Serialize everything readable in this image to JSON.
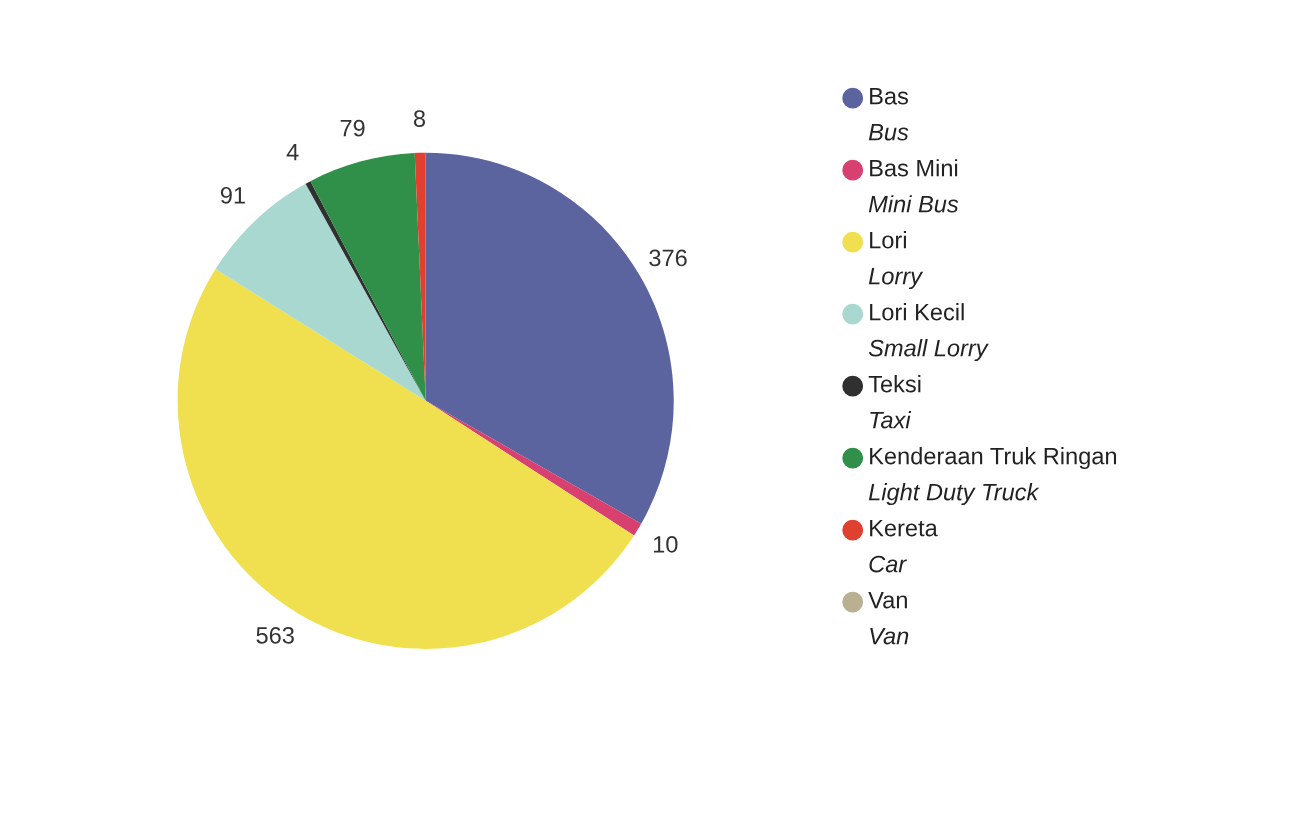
{
  "chart_data": {
    "type": "pie",
    "categories": [
      "Bas\nBus",
      "Bas Mini\nMini Bus",
      "Lori\nLorry",
      "Lori Kecil\nSmall Lorry",
      "Teksi\nTaxi",
      "Kenderaan Truk Ringan\nLight Duty Truck",
      "Kereta\nCar",
      "Van\nVan"
    ],
    "values": [
      376,
      10,
      563,
      91,
      4,
      79,
      8,
      null
    ],
    "colors": [
      "#5c64a0",
      "#d84070",
      "#f0e050",
      "#a8d8d0",
      "#303030",
      "#30904a",
      "#e04030",
      "#b8b090"
    ],
    "data_labels": true,
    "legend": "right"
  }
}
